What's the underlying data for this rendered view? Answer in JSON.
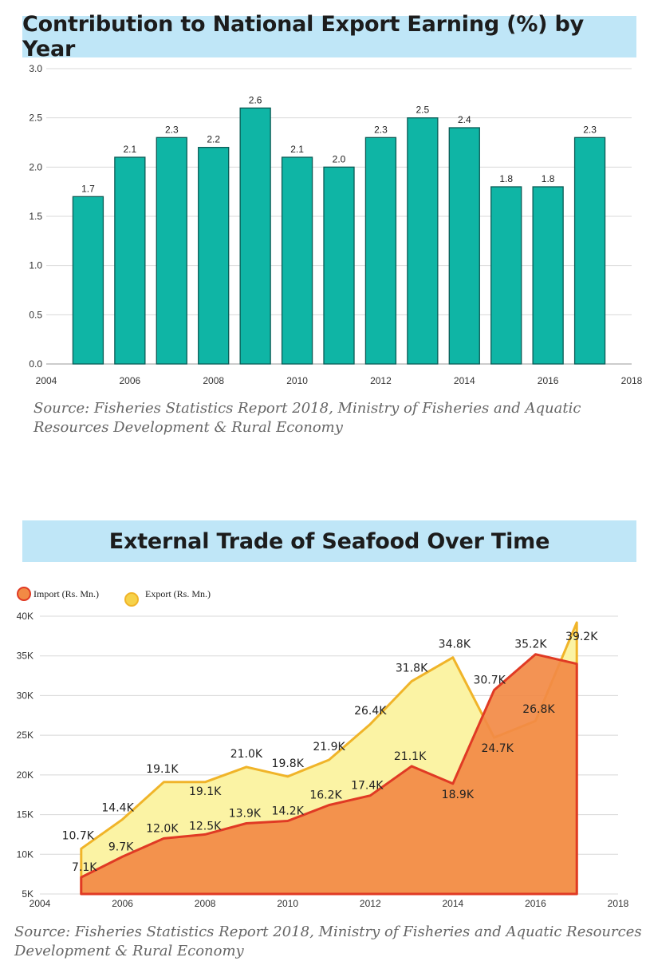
{
  "chart_data": [
    {
      "type": "bar",
      "title": "Contribution to National Export Earning (%) by Year",
      "x": [
        2005,
        2006,
        2007,
        2008,
        2009,
        2010,
        2011,
        2012,
        2013,
        2014,
        2015,
        2016,
        2017
      ],
      "values": [
        1.7,
        2.1,
        2.3,
        2.2,
        2.6,
        2.1,
        2.0,
        2.3,
        2.5,
        2.4,
        1.8,
        1.8,
        2.3
      ],
      "data_labels": [
        "1.7",
        "2.1",
        "2.3",
        "2.2",
        "2.6",
        "2.1",
        "2.0",
        "2.3",
        "2.5",
        "2.4",
        "1.8",
        "1.8",
        "2.3"
      ],
      "xticks": [
        "2004",
        "2006",
        "2008",
        "2010",
        "2012",
        "2014",
        "2016",
        "2018"
      ],
      "yticks": [
        "0.0",
        "0.5",
        "1.0",
        "1.5",
        "2.0",
        "2.5",
        "3.0"
      ],
      "xlim": [
        2004,
        2018
      ],
      "ylim": [
        0,
        3.0
      ],
      "grid": true,
      "color": "#0fb5a5",
      "source": "Source: Fisheries Statistics Report 2018, Ministry of Fisheries and Aquatic Resources Development & Rural Economy"
    },
    {
      "type": "area",
      "title": "External Trade of Seafood Over Time",
      "x": [
        2005,
        2006,
        2007,
        2008,
        2009,
        2010,
        2011,
        2012,
        2013,
        2014,
        2015,
        2016,
        2017
      ],
      "series": [
        {
          "name": "Export (Rs. Mn.)",
          "values": [
            10.7,
            14.4,
            19.1,
            19.1,
            21.0,
            19.8,
            21.9,
            26.4,
            31.8,
            34.8,
            24.7,
            26.8,
            39.2
          ],
          "labels": [
            "10.7K",
            "14.4K",
            "19.1K",
            "19.1K",
            "21.0K",
            "19.8K",
            "21.9K",
            "26.4K",
            "31.8K",
            "34.8K",
            "24.7K",
            "26.8K",
            "39.2K"
          ],
          "color": "#f0b429",
          "fill": "#fbf3a4"
        },
        {
          "name": "Import (Rs. Mn.)",
          "values": [
            7.1,
            9.7,
            12.0,
            12.5,
            13.9,
            14.2,
            16.2,
            17.4,
            21.1,
            18.9,
            30.7,
            35.2,
            34.0
          ],
          "labels": [
            "7.1K",
            "9.7K",
            "12.0K",
            "12.5K",
            "13.9K",
            "14.2K",
            "16.2K",
            "17.4K",
            "21.1K",
            "18.9K",
            "30.7K",
            "35.2K",
            ""
          ],
          "color": "#e03a24",
          "fill": "#f28a45"
        }
      ],
      "xticks": [
        "2004",
        "2006",
        "2008",
        "2010",
        "2012",
        "2014",
        "2016",
        "2018"
      ],
      "yticks": [
        "5K",
        "10K",
        "15K",
        "20K",
        "25K",
        "30K",
        "35K",
        "40K"
      ],
      "xlim": [
        2004,
        2018
      ],
      "ylim": [
        5,
        40
      ],
      "grid": true,
      "legend_position": "top-left",
      "source": "Source: Fisheries Statistics Report 2018, Ministry of Fisheries and Aquatic Resources Development & Rural Economy"
    }
  ]
}
